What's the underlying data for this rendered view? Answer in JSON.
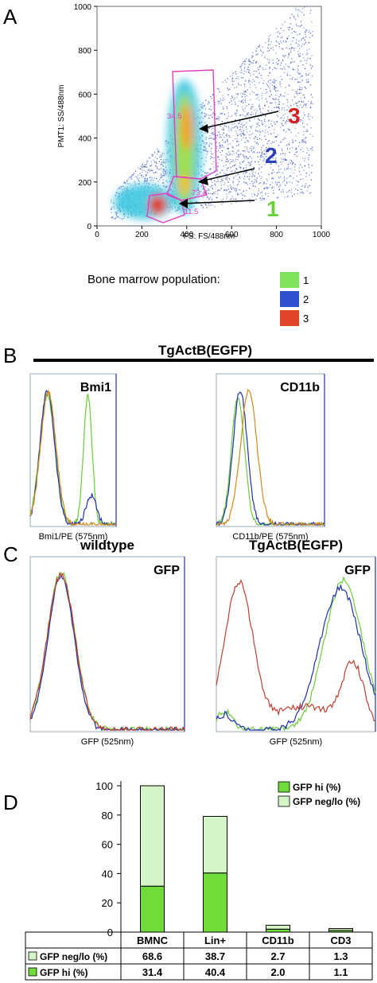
{
  "panels": {
    "a": "A",
    "b": "B",
    "c": "C",
    "d": "D"
  },
  "chart_data": [
    {
      "type": "scatter",
      "panel": "A",
      "xlabel": "FS: FS/488nm",
      "ylabel": "PMT1: SS/488nm",
      "xlim": [
        0,
        1000
      ],
      "ylim": [
        0,
        1000
      ],
      "xticks": [
        "0",
        "200",
        "400",
        "600",
        "800",
        "1000"
      ],
      "yticks": [
        "0",
        "200",
        "400",
        "600",
        "800",
        "1000"
      ],
      "clusters": [
        {
          "name": "1",
          "x": 270,
          "y": 95
        },
        {
          "name": "2",
          "x": 390,
          "y": 190
        },
        {
          "name": "3",
          "x": 400,
          "y": 450
        }
      ],
      "gates": [
        {
          "label": "34.5",
          "x": 345,
          "y": 490
        },
        {
          "label": "73.4",
          "x": 455,
          "y": 140
        },
        {
          "label": "11.5",
          "x": 420,
          "y": 55
        }
      ],
      "gate_color": "#e040c0",
      "arrow_labels": [
        "3",
        "2",
        "1"
      ],
      "arrow_colors": [
        "#d42020",
        "#2a3fb8",
        "#6bd13a"
      ],
      "legend_title": "Bone marrow population:",
      "legend": [
        {
          "name": "1",
          "color": "#7fe35a"
        },
        {
          "name": "2",
          "color": "#2f4fd1"
        },
        {
          "name": "3",
          "color": "#e0452a"
        }
      ]
    },
    {
      "type": "line",
      "panel": "B",
      "title": "TgActB(EGFP)",
      "subplots": [
        {
          "name": "Bmi1",
          "xlabel": "Bmi1/PE (575nm)",
          "series": [
            {
              "color": "#6ccc3c",
              "peaks": [
                [
                  0.2,
                  0.96,
                  0.09
                ],
                [
                  0.67,
                  0.96,
                  0.05
                ]
              ]
            },
            {
              "color": "#2030b0",
              "peaks": [
                [
                  0.2,
                  1.0,
                  0.085
                ],
                [
                  0.71,
                  0.22,
                  0.06
                ]
              ]
            },
            {
              "color": "#d08a20",
              "peaks": [
                [
                  0.21,
                  0.98,
                  0.09
                ]
              ]
            }
          ]
        },
        {
          "name": "CD11b",
          "xlabel": "CD11b/PE (575nm)",
          "series": [
            {
              "color": "#6ccc3c",
              "peaks": [
                [
                  0.2,
                  0.95,
                  0.06
                ]
              ]
            },
            {
              "color": "#2030b0",
              "peaks": [
                [
                  0.22,
                  1.0,
                  0.065
                ]
              ]
            },
            {
              "color": "#d08a20",
              "peaks": [
                [
                  0.3,
                  1.0,
                  0.075
                ]
              ]
            }
          ]
        }
      ]
    },
    {
      "type": "line",
      "panel": "C",
      "subplots": [
        {
          "title": "wildtype",
          "name": "GFP",
          "xlabel": "GFP (525nm)",
          "series": [
            {
              "color": "#6ccc3c",
              "peaks": [
                [
                  0.2,
                  1.0,
                  0.09
                ]
              ]
            },
            {
              "color": "#2030b0",
              "peaks": [
                [
                  0.2,
                  0.98,
                  0.085
                ]
              ]
            },
            {
              "color": "#c04030",
              "peaks": [
                [
                  0.2,
                  0.99,
                  0.09
                ]
              ]
            }
          ]
        },
        {
          "title": "TgActB(EGFP)",
          "name": "GFP",
          "xlabel": "GFP (525nm)",
          "series": [
            {
              "color": "#6ccc3c",
              "peaks": [
                [
                  0.05,
                  0.12,
                  0.05
                ],
                [
                  0.8,
                  0.95,
                  0.12
                ]
              ]
            },
            {
              "color": "#2030b0",
              "peaks": [
                [
                  0.05,
                  0.1,
                  0.05
                ],
                [
                  0.78,
                  0.9,
                  0.13
                ]
              ]
            },
            {
              "color": "#c04030",
              "peaks": [
                [
                  0.14,
                  0.93,
                  0.09
                ],
                [
                  0.55,
                  0.15,
                  0.18
                ],
                [
                  0.86,
                  0.4,
                  0.07
                ]
              ]
            }
          ]
        }
      ]
    },
    {
      "type": "bar",
      "panel": "D",
      "stacked": true,
      "categories": [
        "BMNC",
        "Lin+",
        "CD11b",
        "CD3"
      ],
      "ylim": [
        0,
        100
      ],
      "yticks": [
        "0",
        "20",
        "40",
        "60",
        "80",
        "100"
      ],
      "series": [
        {
          "name": "GFP neg/lo (%)",
          "values": [
            68.6,
            38.7,
            2.7,
            1.3
          ],
          "color": "#d6f5c6"
        },
        {
          "name": "GFP hi (%)",
          "values": [
            31.4,
            40.4,
            2.0,
            1.1
          ],
          "color": "#6fdc3a"
        }
      ],
      "table": {
        "rows": [
          {
            "label": "GFP neg/lo (%)",
            "values": [
              "68.6",
              "38.7",
              "2.7",
              "1.3"
            ]
          },
          {
            "label": "GFP hi (%)",
            "values": [
              "31.4",
              "40.4",
              "2.0",
              "1.1"
            ]
          }
        ]
      }
    }
  ]
}
